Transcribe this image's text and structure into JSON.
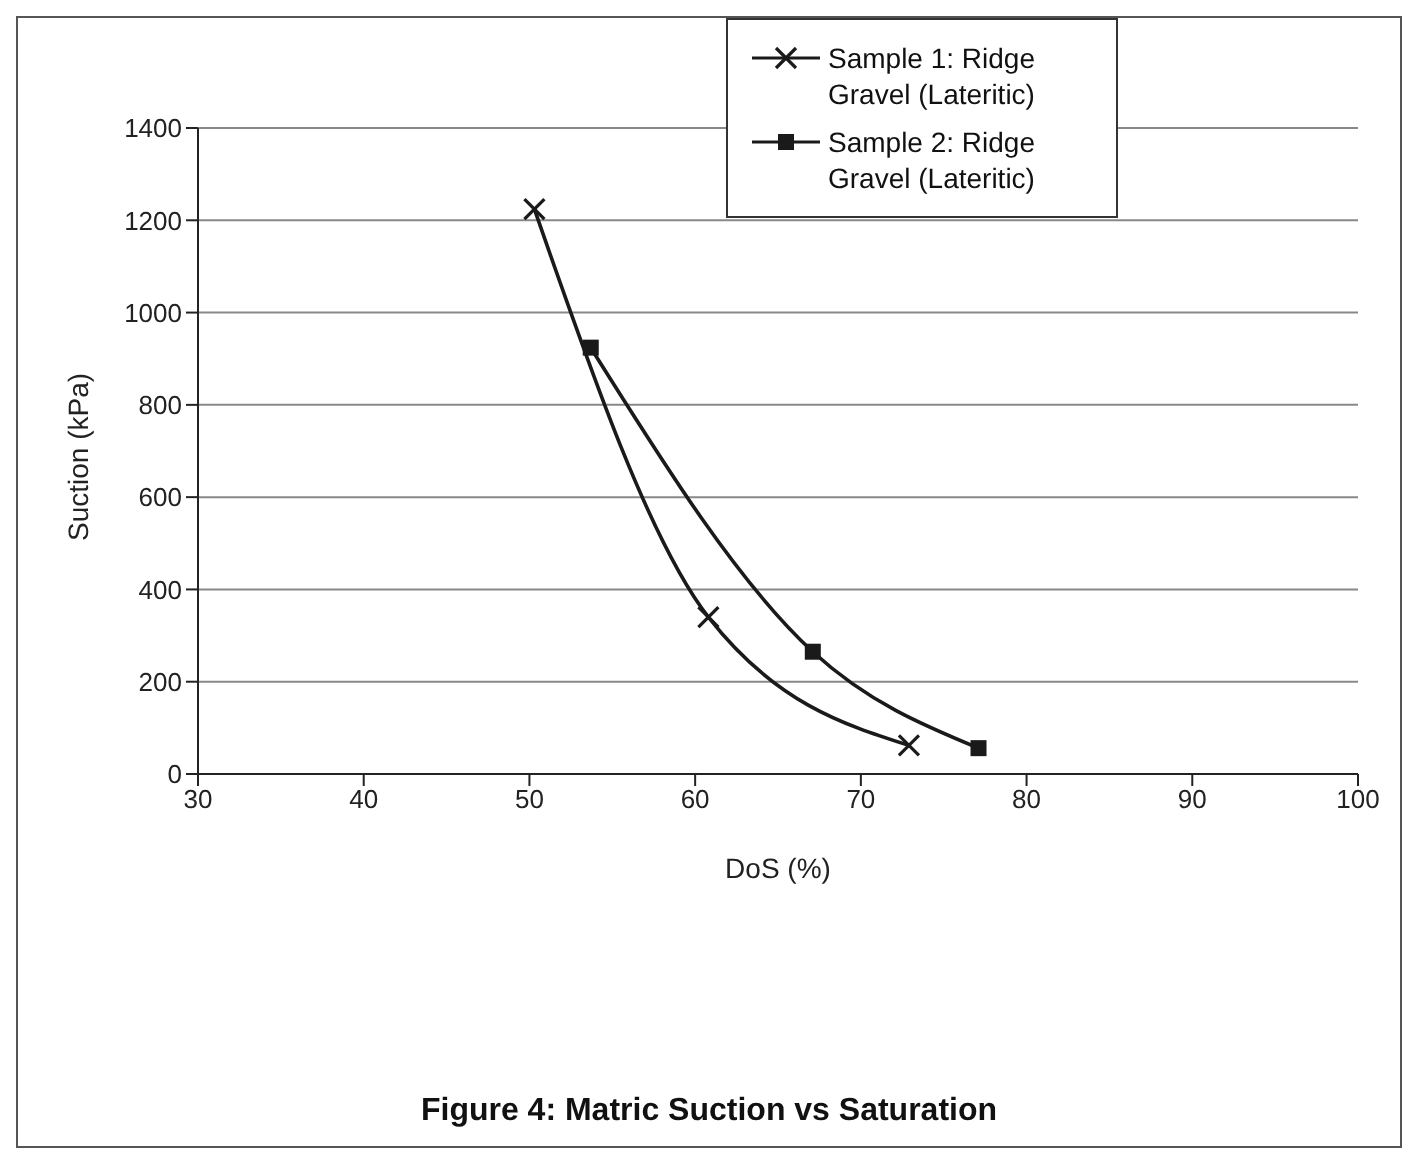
{
  "chart_data": {
    "type": "line",
    "title": "Figure 4: Matric Suction vs Saturation",
    "xlabel": "DoS (%)",
    "ylabel": "Suction (kPa)",
    "series": [
      {
        "name": "Sample 1: Ridge Gravel (Lateritic)",
        "color": "#1a1a1a",
        "marker": "cross",
        "x": [
          50.3,
          60.8,
          72.9
        ],
        "values": [
          1224,
          340,
          62
        ]
      },
      {
        "name": "Sample 2: Ridge Gravel (Lateritic)",
        "color": "#1a1a1a",
        "marker": "square",
        "x": [
          53.7,
          67.1,
          77.1
        ],
        "values": [
          924,
          265,
          56
        ]
      }
    ],
    "xlim": [
      30,
      100
    ],
    "xticks": [
      30,
      40,
      50,
      60,
      70,
      80,
      90,
      100
    ],
    "ylim": [
      0,
      1400
    ],
    "yticks": [
      0,
      200,
      400,
      600,
      800,
      1000,
      1200,
      1400
    ],
    "grid": "y",
    "legend": "top right",
    "line_style": "solid"
  }
}
